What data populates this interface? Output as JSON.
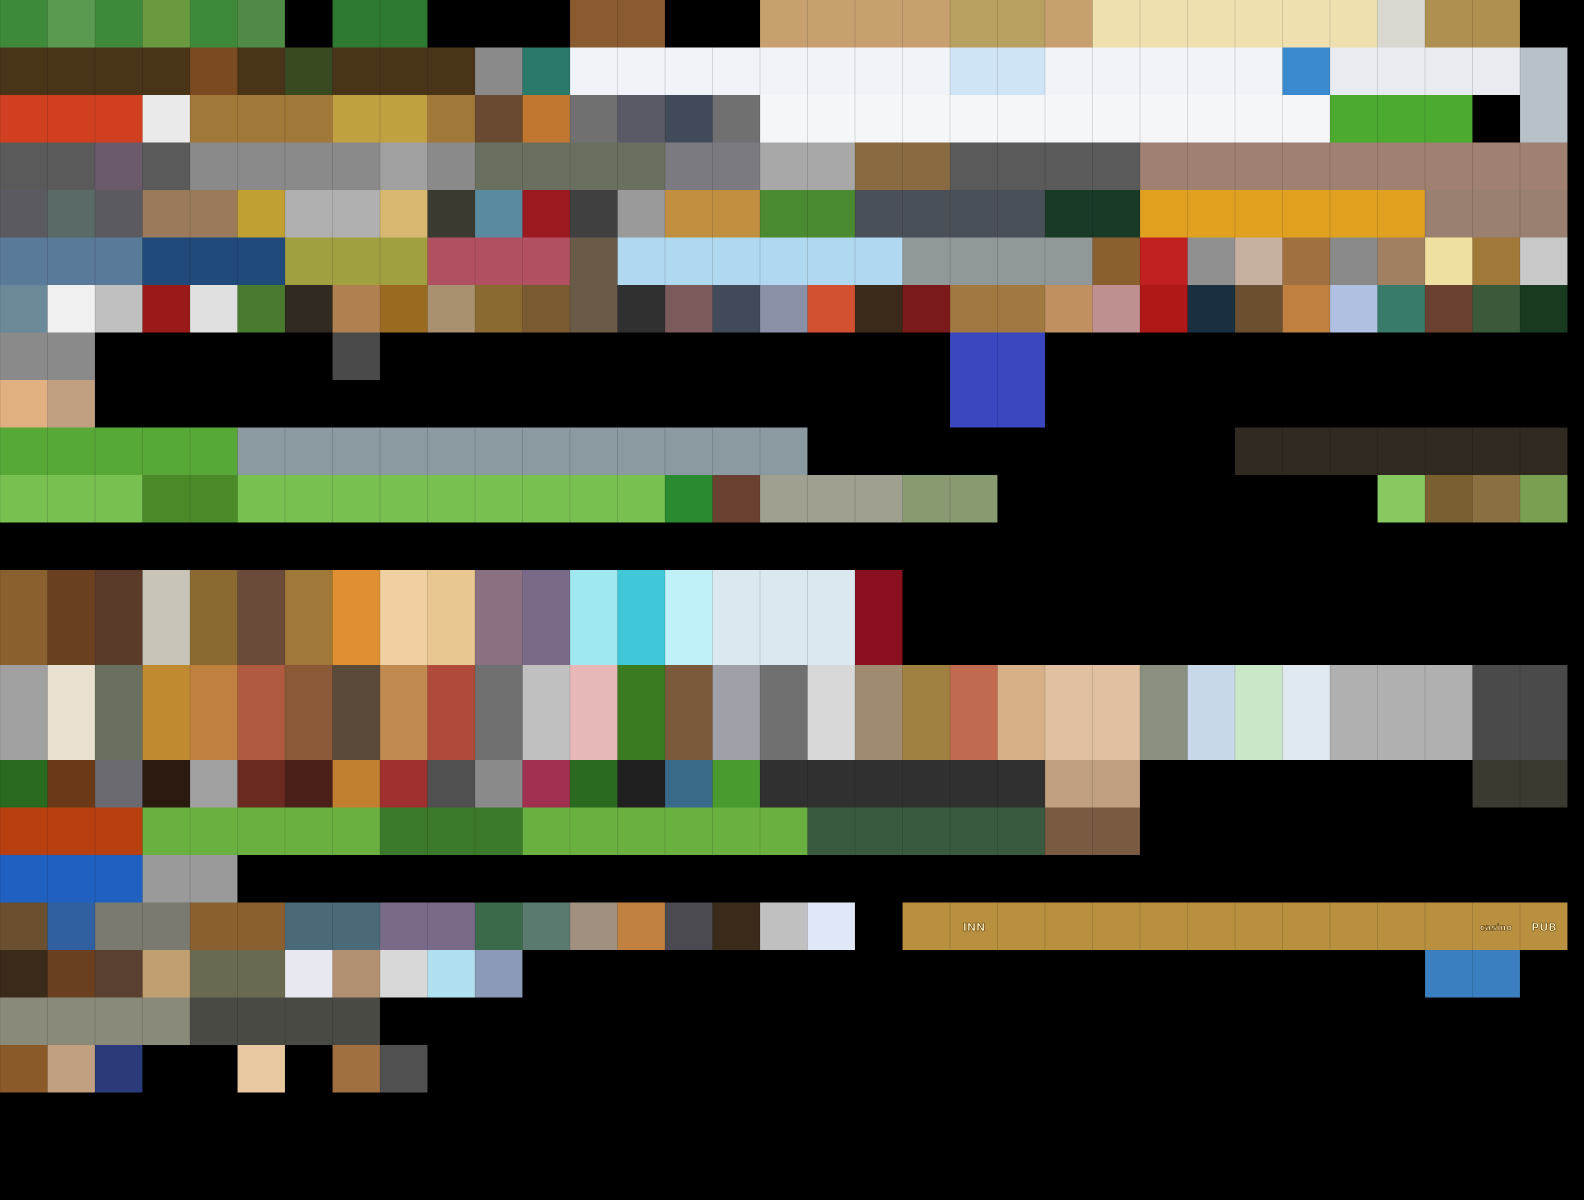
{
  "signs": {
    "labels": [
      "INN",
      "casino",
      "PUB"
    ]
  }
}
